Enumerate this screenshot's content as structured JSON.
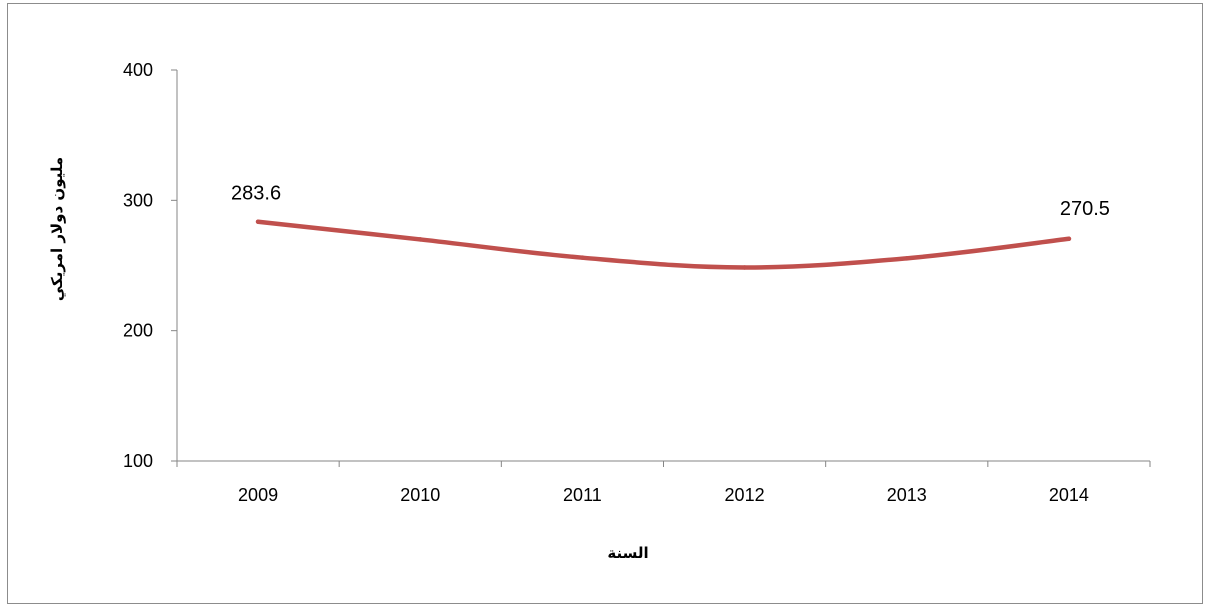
{
  "chart_data": {
    "type": "line",
    "title": "",
    "xlabel": "السنة",
    "ylabel": "مليون دولار امريكي",
    "categories": [
      "2009",
      "2010",
      "2011",
      "2012",
      "2013",
      "2014"
    ],
    "series": [
      {
        "values": [
          283.6,
          270.0,
          256.0,
          248.5,
          255.5,
          270.5
        ],
        "color": "#c0504d"
      }
    ],
    "data_labels": [
      {
        "index": 0,
        "text": "283.6"
      },
      {
        "index": 5,
        "text": "270.5"
      }
    ],
    "ylim": [
      100,
      400
    ],
    "yticks": [
      "100",
      "200",
      "300",
      "400"
    ],
    "grid": false,
    "legend": "none"
  }
}
